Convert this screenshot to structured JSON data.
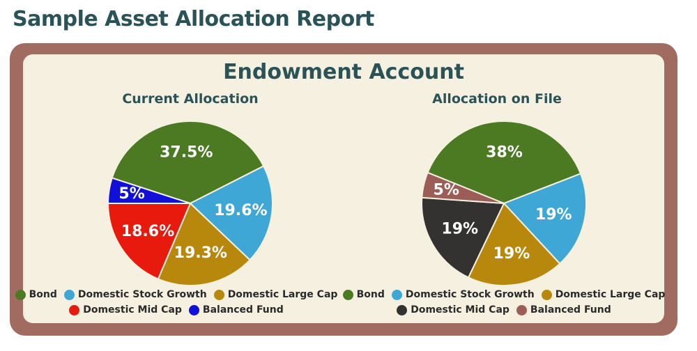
{
  "page_title": "Sample Asset Allocation Report",
  "panel_title": "Endowment Account",
  "colors": {
    "Bond": "#4b7a22",
    "Domestic Stock Growth": "#3fa7d6",
    "Domestic Large Cap": "#b8880c",
    "Domestic Mid Cap": "#e8190d",
    "Domestic Mid Cap (on file)": "#333230",
    "Balanced Fund": "#1010d8",
    "Balanced Fund (on file)": "#9b5d55"
  },
  "chart_data": [
    {
      "type": "pie",
      "title": "Current Allocation",
      "categories": [
        "Bond",
        "Domestic Stock Growth",
        "Domestic Large Cap",
        "Domestic Mid Cap",
        "Balanced Fund"
      ],
      "values": [
        37.5,
        19.6,
        19.3,
        18.6,
        5
      ],
      "labels": [
        "37.5%",
        "19.6%",
        "19.3%",
        "18.6%",
        "5%"
      ],
      "colors": [
        "#4b7a22",
        "#3fa7d6",
        "#b8880c",
        "#e8190d",
        "#1010d8"
      ],
      "legend": "bottom"
    },
    {
      "type": "pie",
      "title": "Allocation on File",
      "categories": [
        "Bond",
        "Domestic Stock Growth",
        "Domestic Large Cap",
        "Domestic Mid Cap",
        "Balanced Fund"
      ],
      "values": [
        38,
        19,
        19,
        19,
        5
      ],
      "labels": [
        "38%",
        "19%",
        "19%",
        "19%",
        "5%"
      ],
      "colors": [
        "#4b7a22",
        "#3fa7d6",
        "#b8880c",
        "#333230",
        "#9b5d55"
      ],
      "legend": "bottom"
    }
  ]
}
